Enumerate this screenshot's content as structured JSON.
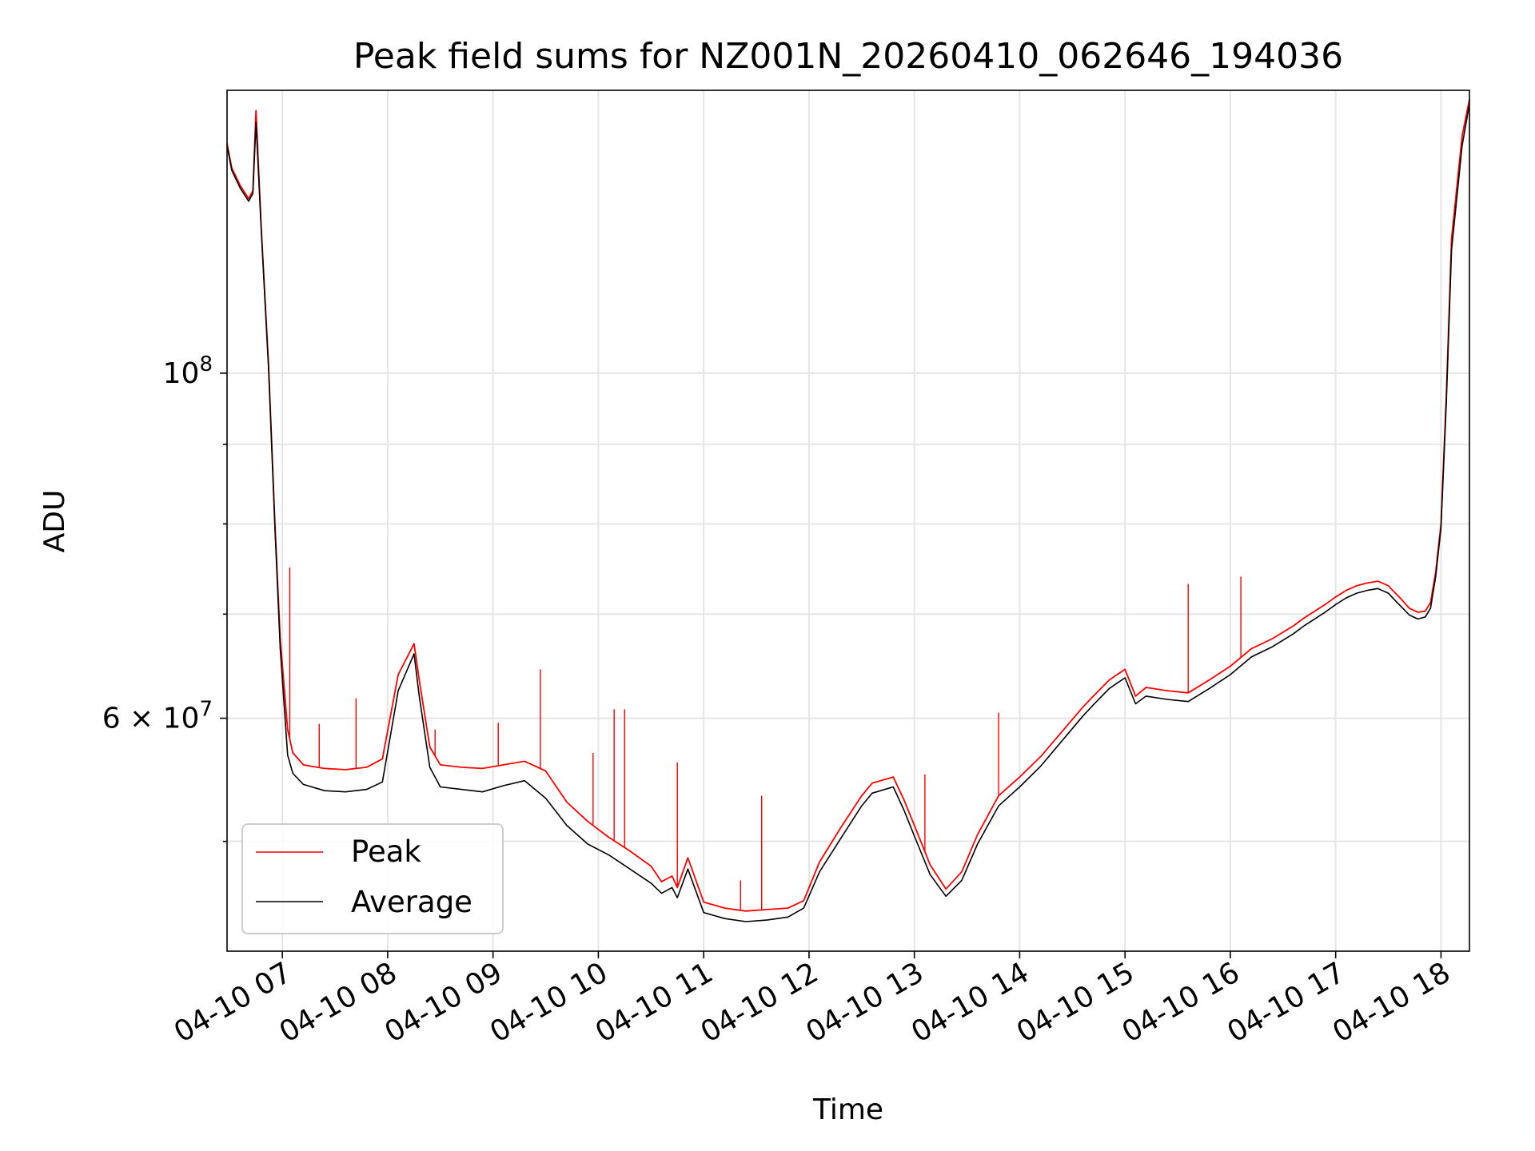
{
  "chart_data": {
    "type": "line",
    "title": "Peak field sums for NZ001N_20260410_062646_194036",
    "xlabel": "Time",
    "ylabel": "ADU",
    "yscale": "log",
    "ylim": [
      42500000,
      152000000
    ],
    "xlim_hours": [
      6.475,
      18.27
    ],
    "grid": true,
    "legend_position": "lower-left",
    "x_tick_labels": [
      "04-10 07",
      "04-10 08",
      "04-10 09",
      "04-10 10",
      "04-10 11",
      "04-10 12",
      "04-10 13",
      "04-10 14",
      "04-10 15",
      "04-10 16",
      "04-10 17",
      "04-10 18"
    ],
    "x_tick_hours": [
      7,
      8,
      9,
      10,
      11,
      12,
      13,
      14,
      15,
      16,
      17,
      18
    ],
    "y_ticks_major": [
      {
        "value": 100000000,
        "label_base": "10",
        "label_exp": "8"
      },
      {
        "value": 60000000,
        "label_base": "6 × 10",
        "label_exp": "7"
      }
    ],
    "y_ticks_minor": [
      50000000,
      70000000,
      80000000,
      90000000
    ],
    "series": [
      {
        "name": "Peak",
        "color": "#ff0000",
        "x_hours": [
          6.475,
          6.52,
          6.6,
          6.68,
          6.72,
          6.75,
          6.8,
          6.87,
          6.93,
          6.98,
          7.05,
          7.1,
          7.2,
          7.4,
          7.6,
          7.8,
          7.95,
          8.1,
          8.25,
          8.3,
          8.4,
          8.5,
          8.7,
          8.9,
          9.1,
          9.3,
          9.5,
          9.7,
          9.9,
          10.1,
          10.3,
          10.5,
          10.6,
          10.7,
          10.75,
          10.85,
          11.0,
          11.2,
          11.4,
          11.6,
          11.8,
          11.95,
          12.1,
          12.3,
          12.5,
          12.6,
          12.8,
          12.9,
          13.0,
          13.15,
          13.3,
          13.45,
          13.6,
          13.8,
          14.0,
          14.2,
          14.4,
          14.6,
          14.7,
          14.85,
          15.0,
          15.1,
          15.2,
          15.4,
          15.6,
          15.8,
          16.0,
          16.2,
          16.4,
          16.6,
          16.7,
          16.8,
          16.9,
          17.0,
          17.1,
          17.2,
          17.3,
          17.4,
          17.5,
          17.55,
          17.62,
          17.7,
          17.78,
          17.85,
          17.9,
          17.95,
          18.0,
          18.05,
          18.1,
          18.2,
          18.27
        ],
        "y": [
          140500000,
          135500000,
          132000000,
          129500000,
          131000000,
          147500000,
          124000000,
          101000000,
          80000000,
          67500000,
          59000000,
          57000000,
          56000000,
          55700000,
          55600000,
          55800000,
          56500000,
          64000000,
          67000000,
          63500000,
          57500000,
          56000000,
          55800000,
          55700000,
          56000000,
          56300000,
          55500000,
          53000000,
          51500000,
          50300000,
          49300000,
          48200000,
          47100000,
          47500000,
          46700000,
          48800000,
          45700000,
          45300000,
          45100000,
          45200000,
          45300000,
          45800000,
          48500000,
          51000000,
          53500000,
          54500000,
          55000000,
          53200000,
          51200000,
          48300000,
          46600000,
          47800000,
          50500000,
          53500000,
          55000000,
          56700000,
          58800000,
          61000000,
          62000000,
          63500000,
          64500000,
          62000000,
          62800000,
          62500000,
          62300000,
          63500000,
          64800000,
          66500000,
          67500000,
          68800000,
          69600000,
          70300000,
          71000000,
          71800000,
          72500000,
          73000000,
          73300000,
          73500000,
          73000000,
          72400000,
          71600000,
          70600000,
          70200000,
          70300000,
          71200000,
          74500000,
          80000000,
          96500000,
          122000000,
          142000000,
          150000000
        ],
        "spikes": [
          {
            "x_hours": 7.07,
            "y": 75000000
          },
          {
            "x_hours": 7.35,
            "y": 59500000
          },
          {
            "x_hours": 7.7,
            "y": 61800000
          },
          {
            "x_hours": 8.45,
            "y": 59000000
          },
          {
            "x_hours": 9.05,
            "y": 59600000
          },
          {
            "x_hours": 9.45,
            "y": 64500000
          },
          {
            "x_hours": 9.95,
            "y": 57000000
          },
          {
            "x_hours": 10.15,
            "y": 60800000
          },
          {
            "x_hours": 10.25,
            "y": 60800000
          },
          {
            "x_hours": 10.75,
            "y": 56200000
          },
          {
            "x_hours": 11.35,
            "y": 47200000
          },
          {
            "x_hours": 11.55,
            "y": 53500000
          },
          {
            "x_hours": 13.1,
            "y": 55200000
          },
          {
            "x_hours": 13.8,
            "y": 60500000
          },
          {
            "x_hours": 15.6,
            "y": 73200000
          },
          {
            "x_hours": 16.1,
            "y": 74000000
          }
        ]
      },
      {
        "name": "Average",
        "color": "#000000",
        "x_hours": [
          6.475,
          6.52,
          6.6,
          6.68,
          6.72,
          6.75,
          6.8,
          6.87,
          6.93,
          6.98,
          7.05,
          7.1,
          7.2,
          7.4,
          7.6,
          7.8,
          7.95,
          8.1,
          8.25,
          8.3,
          8.4,
          8.5,
          8.7,
          8.9,
          9.1,
          9.3,
          9.5,
          9.7,
          9.9,
          10.1,
          10.3,
          10.5,
          10.6,
          10.7,
          10.75,
          10.85,
          11.0,
          11.2,
          11.4,
          11.6,
          11.8,
          11.95,
          12.1,
          12.3,
          12.5,
          12.6,
          12.8,
          12.9,
          13.0,
          13.15,
          13.3,
          13.45,
          13.6,
          13.8,
          14.0,
          14.2,
          14.4,
          14.6,
          14.7,
          14.85,
          15.0,
          15.1,
          15.2,
          15.4,
          15.6,
          15.8,
          16.0,
          16.2,
          16.4,
          16.6,
          16.7,
          16.8,
          16.9,
          17.0,
          17.1,
          17.2,
          17.3,
          17.4,
          17.5,
          17.55,
          17.62,
          17.7,
          17.78,
          17.85,
          17.9,
          17.95,
          18.0,
          18.05,
          18.1,
          18.2,
          18.27
        ],
        "y": [
          140000000,
          135000000,
          131500000,
          129000000,
          130500000,
          145000000,
          123500000,
          100500000,
          79500000,
          66500000,
          56800000,
          55300000,
          54400000,
          53900000,
          53800000,
          54000000,
          54600000,
          62500000,
          66000000,
          62000000,
          55800000,
          54200000,
          54000000,
          53800000,
          54300000,
          54700000,
          53300000,
          51200000,
          49800000,
          49000000,
          48000000,
          47000000,
          46300000,
          46700000,
          46000000,
          48000000,
          45000000,
          44600000,
          44400000,
          44500000,
          44700000,
          45300000,
          47800000,
          50200000,
          52700000,
          53700000,
          54200000,
          52400000,
          50400000,
          47600000,
          46100000,
          47200000,
          49800000,
          52700000,
          54200000,
          55900000,
          58000000,
          60200000,
          61200000,
          62700000,
          63700000,
          61300000,
          62000000,
          61700000,
          61500000,
          62700000,
          64000000,
          65700000,
          66700000,
          68000000,
          68800000,
          69500000,
          70200000,
          71000000,
          71700000,
          72200000,
          72500000,
          72700000,
          72200000,
          71600000,
          70800000,
          69900000,
          69500000,
          69700000,
          70600000,
          74000000,
          79500000,
          95500000,
          120000000,
          140000000,
          149000000
        ]
      }
    ]
  }
}
